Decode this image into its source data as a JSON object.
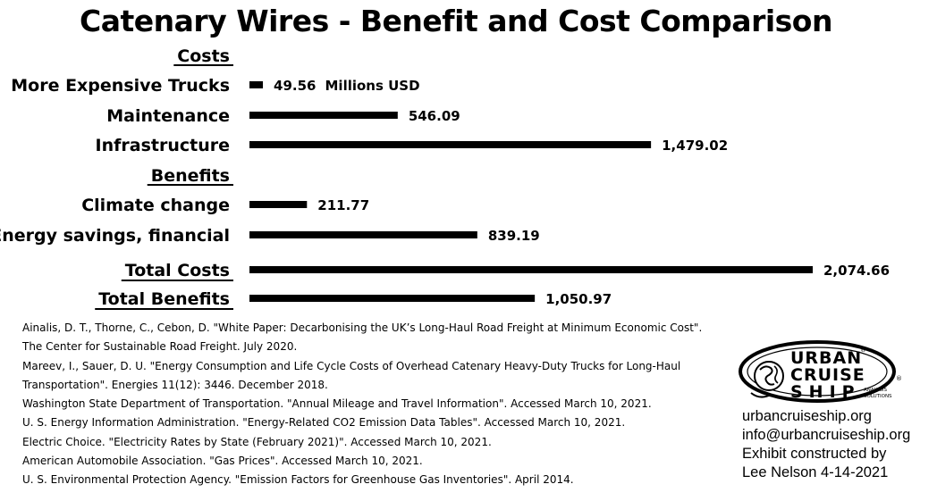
{
  "chart_data": {
    "type": "bar",
    "orientation": "horizontal",
    "title": "Catenary Wires - Benefit and Cost Comparison",
    "unit_annotation": "Millions USD",
    "xlim": [
      0,
      2100
    ],
    "groups": [
      {
        "heading": "Costs"
      },
      {
        "heading": "Benefits"
      },
      {
        "heading": null
      }
    ],
    "bars": [
      {
        "category": "More Expensive Trucks",
        "value": 49.56,
        "label": "49.56",
        "group": 0
      },
      {
        "category": "Maintenance",
        "value": 546.09,
        "label": "546.09",
        "group": 0
      },
      {
        "category": "Infrastructure",
        "value": 1479.02,
        "label": "1,479.02",
        "group": 0
      },
      {
        "category": "Climate change",
        "value": 211.77,
        "label": "211.77",
        "group": 1
      },
      {
        "category": "Energy savings, financial",
        "value": 839.19,
        "label": "839.19",
        "group": 1
      },
      {
        "category": "Total Costs",
        "value": 2074.66,
        "label": "2,074.66",
        "group": 2,
        "underlined": true
      },
      {
        "category": "Total Benefits",
        "value": 1050.97,
        "label": "1,050.97",
        "group": 2,
        "underlined": true
      }
    ],
    "bar_color": "#000000",
    "grid": false,
    "legend": "none"
  },
  "sources": [
    "Ainalis, D. T., Thorne, C., Cebon, D. \"White Paper: Decarbonising the UK’s Long-Haul Road Freight at Minimum Economic Cost\".",
    "The Center for Sustainable Road Freight. July 2020.",
    "Mareev, I., Sauer, D. U. \"Energy Consumption and Life Cycle Costs of Overhead Catenary Heavy-Duty Trucks for Long-Haul",
    "Transportation\". Energies 11(12): 3446. December 2018.",
    "Washington State Department of Transportation. \"Annual Mileage and Travel Information\". Accessed March 10, 2021.",
    "U. S. Energy Information Administration. \"Energy-Related CO2 Emission Data Tables\". Accessed March 10, 2021.",
    "Electric Choice. \"Electricity Rates by State (February 2021)\". Accessed March 10, 2021.",
    "American Automobile Association. \"Gas Prices\". Accessed March 10, 2021.",
    "U. S. Environmental Protection Agency. \"Emission Factors for Greenhouse Gas Inventories\". April 2014."
  ],
  "logo": {
    "line1": "URBAN",
    "line2": "CRUISE",
    "line3": "SHIP",
    "tagline_top": "ANALYSIS",
    "tagline_bottom": "SOLUTIONS",
    "mark": "®",
    "icon": "globe-icon"
  },
  "contact": {
    "website": "urbancruiseship.org",
    "email": "info@urbancruiseship.org",
    "credit_line1": "Exhibit constructed by",
    "credit_line2": "Lee Nelson 4-14-2021"
  }
}
